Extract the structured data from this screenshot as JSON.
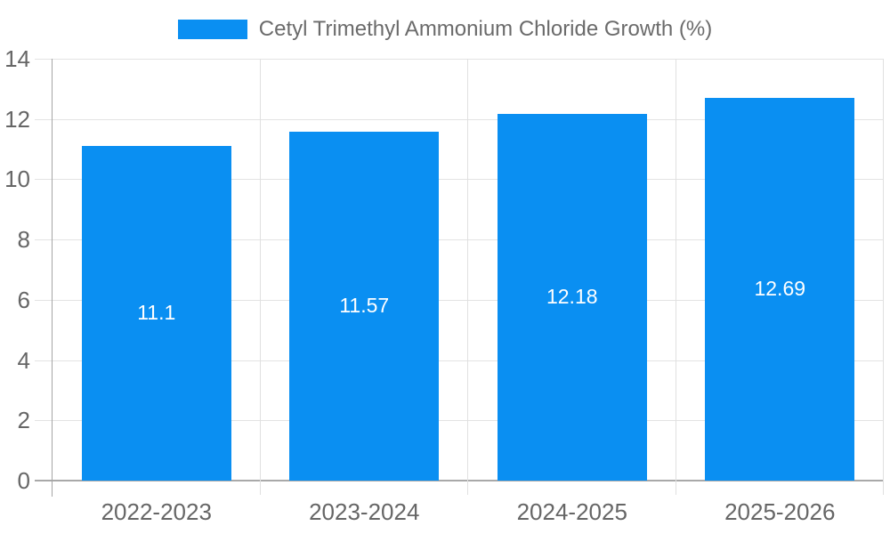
{
  "chart_data": {
    "type": "bar",
    "title": "",
    "legend": {
      "label": "Cetyl Trimethyl Ammonium Chloride Growth (%)",
      "position": "top"
    },
    "categories": [
      "2022-2023",
      "2023-2024",
      "2024-2025",
      "2025-2026"
    ],
    "values": [
      11.1,
      11.57,
      12.18,
      12.69
    ],
    "data_labels": [
      "11.1",
      "11.57",
      "12.18",
      "12.69"
    ],
    "xlabel": "",
    "ylabel": "",
    "ylim": [
      0,
      14
    ],
    "ytick_step": 2,
    "yticks": [
      0,
      2,
      4,
      6,
      8,
      10,
      12,
      14
    ],
    "grid": true,
    "colors": {
      "bar": "#0a8ff2",
      "grid": "#e3e3e3",
      "separator": "#e0e0e0",
      "axis": "#a5a5a5",
      "baseline": "#a9a9a9",
      "tick_text": "#666666",
      "legend_text": "#6b6b6b",
      "data_label_text": "#ffffff",
      "background": "#ffffff"
    }
  }
}
